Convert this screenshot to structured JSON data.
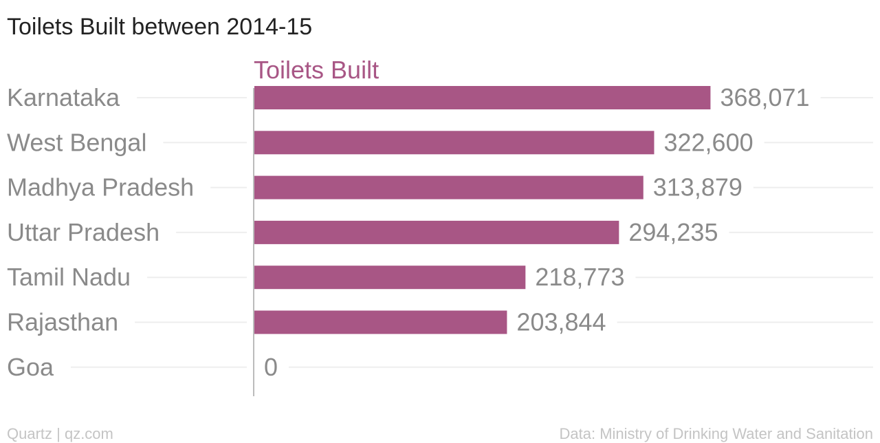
{
  "chart_data": {
    "type": "bar",
    "orientation": "horizontal",
    "title": "Toilets Built between 2014-15",
    "series": [
      {
        "name": "Toilets Built",
        "color": "#a85685",
        "values": [
          368071,
          322600,
          313879,
          294235,
          218773,
          203844,
          0
        ]
      }
    ],
    "categories": [
      "Karnataka",
      "West Bengal",
      "Madhya Pradesh",
      "Uttar Pradesh",
      "Tamil Nadu",
      "Rajasthan",
      "Goa"
    ],
    "value_labels": [
      "368,071",
      "322,600",
      "313,879",
      "294,235",
      "218,773",
      "203,844",
      "0"
    ],
    "xlim": [
      0,
      400000
    ],
    "grid": false,
    "legend": "none"
  },
  "footer": {
    "source_left": "Quartz | qz.com",
    "source_right": "Data: Ministry of Drinking Water and Sanitation"
  },
  "colors": {
    "bar": "#a85685",
    "series_label": "#a85685",
    "text_muted": "#8a8a8a",
    "footer": "#c4c4c4",
    "axis": "#bbbbbb",
    "guide": "#eeeeee"
  }
}
